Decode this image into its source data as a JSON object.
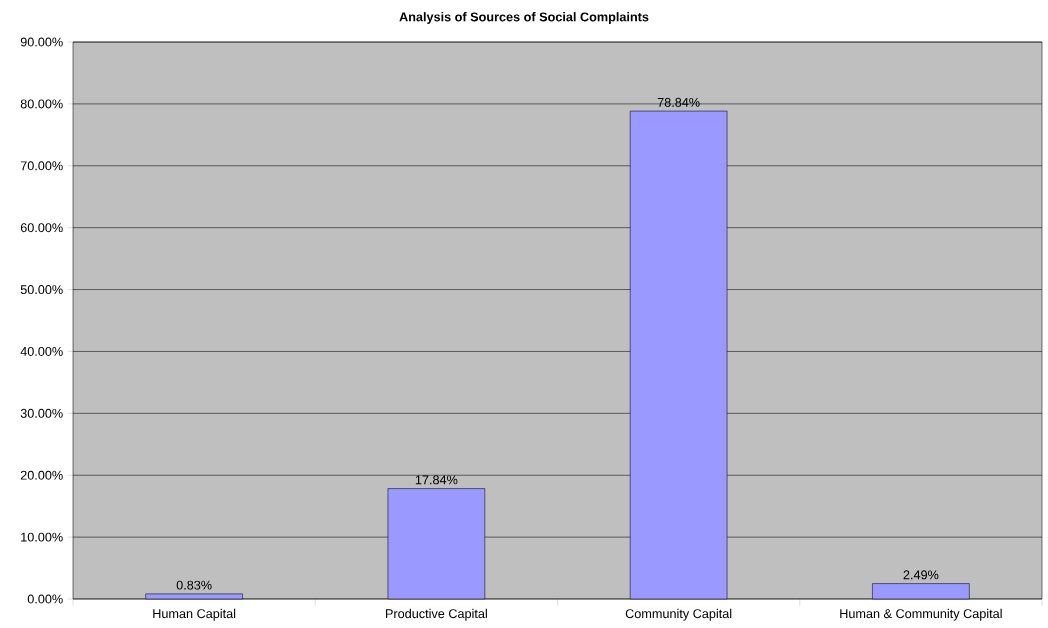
{
  "chart_data": {
    "type": "bar",
    "title": "**Analysis of Sources of Social Complaints**",
    "categories": [
      "Human Capital",
      "Productive Capital",
      "Community Capital",
      "Human & Community Capital"
    ],
    "values": [
      0.83,
      17.84,
      78.84,
      2.49
    ],
    "value_labels": [
      "0.83%",
      "17.84%",
      "78.84%",
      "2.49%"
    ],
    "color": "#9999ff",
    "ylim": [
      0,
      90
    ],
    "yticks": [
      {
        "value": 0,
        "label": "0.00%"
      },
      {
        "value": 10,
        "label": "10.00%"
      },
      {
        "value": 20,
        "label": "20.00%"
      },
      {
        "value": 30,
        "label": "30.00%"
      },
      {
        "value": 40,
        "label": "40.00%"
      },
      {
        "value": 50,
        "label": "50.00%"
      },
      {
        "value": 60,
        "label": "60.00%"
      },
      {
        "value": 70,
        "label": "70.00%"
      },
      {
        "value": 80,
        "label": "80.00%"
      },
      {
        "value": 90,
        "label": "90.00%"
      }
    ],
    "grid": "y"
  }
}
